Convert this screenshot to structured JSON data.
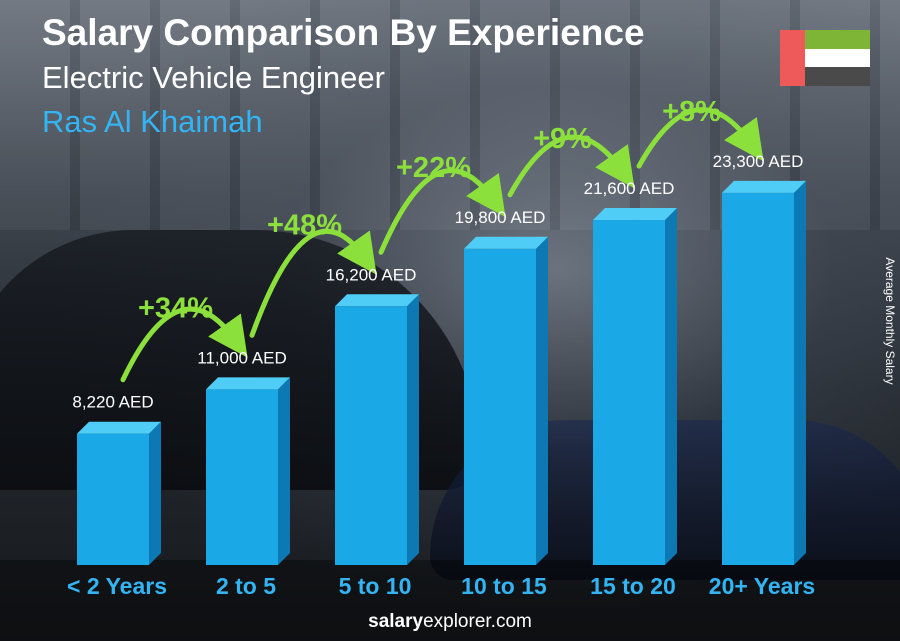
{
  "header": {
    "title": "Salary Comparison By Experience",
    "subtitle": "Electric Vehicle Engineer",
    "location": "Ras Al Khaimah"
  },
  "flag": {
    "country": "United Arab Emirates",
    "colors": [
      "#ee5a5a",
      "#7fb536",
      "#ffffff",
      "#4a4a4a"
    ]
  },
  "side_label": "Average Monthly Salary",
  "footer": {
    "brand_bold": "salary",
    "brand_rest": "explorer.com"
  },
  "colors": {
    "bar_front": "#1aa9e6",
    "bar_side": "#0c79b4",
    "bar_top": "#4fcdf6",
    "increase": "#8ce03c",
    "category": "#33b5f5"
  },
  "chart_data": {
    "type": "bar",
    "title": "Salary Comparison By Experience",
    "categories": [
      "< 2 Years",
      "2 to 5",
      "5 to 10",
      "10 to 15",
      "15 to 20",
      "20+ Years"
    ],
    "values": [
      8220,
      11000,
      16200,
      19800,
      21600,
      23300
    ],
    "value_labels": [
      "8,220 AED",
      "11,000 AED",
      "16,200 AED",
      "19,800 AED",
      "21,600 AED",
      "23,300 AED"
    ],
    "increases": [
      "+34%",
      "+48%",
      "+22%",
      "+9%",
      "+8%"
    ],
    "unit": "AED",
    "ylabel": "Average Monthly Salary",
    "grid": false
  }
}
